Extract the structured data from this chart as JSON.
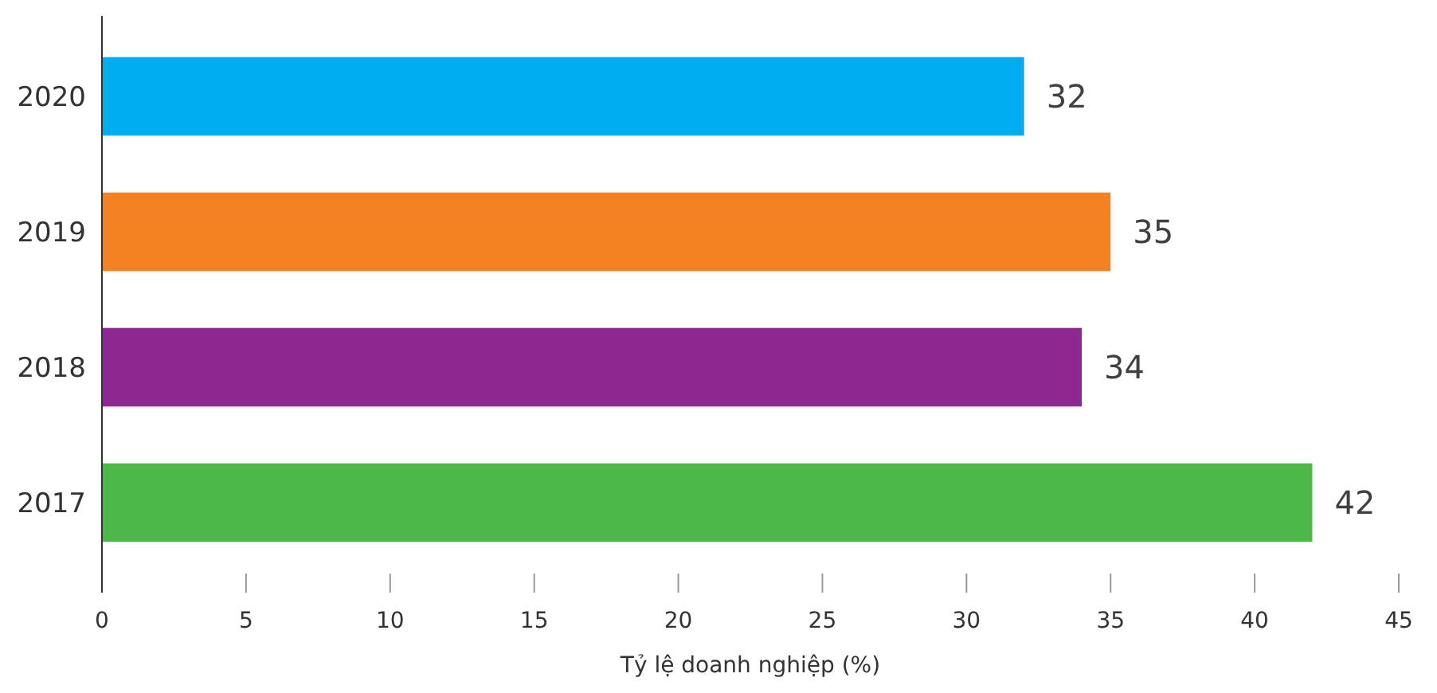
{
  "chart_data": {
    "type": "bar",
    "orientation": "horizontal",
    "xlabel": "Tỷ lệ doanh nghiệp (%)",
    "categories": [
      "2020",
      "2019",
      "2018",
      "2017"
    ],
    "values": [
      32,
      35,
      34,
      42
    ],
    "colors": [
      "#00aeef",
      "#f58220",
      "#8e278f",
      "#4cb848"
    ],
    "xlim": [
      0,
      45
    ],
    "xticks": [
      0,
      5,
      10,
      15,
      20,
      25,
      30,
      35,
      40,
      45
    ],
    "data_labels": true,
    "grid": false
  }
}
